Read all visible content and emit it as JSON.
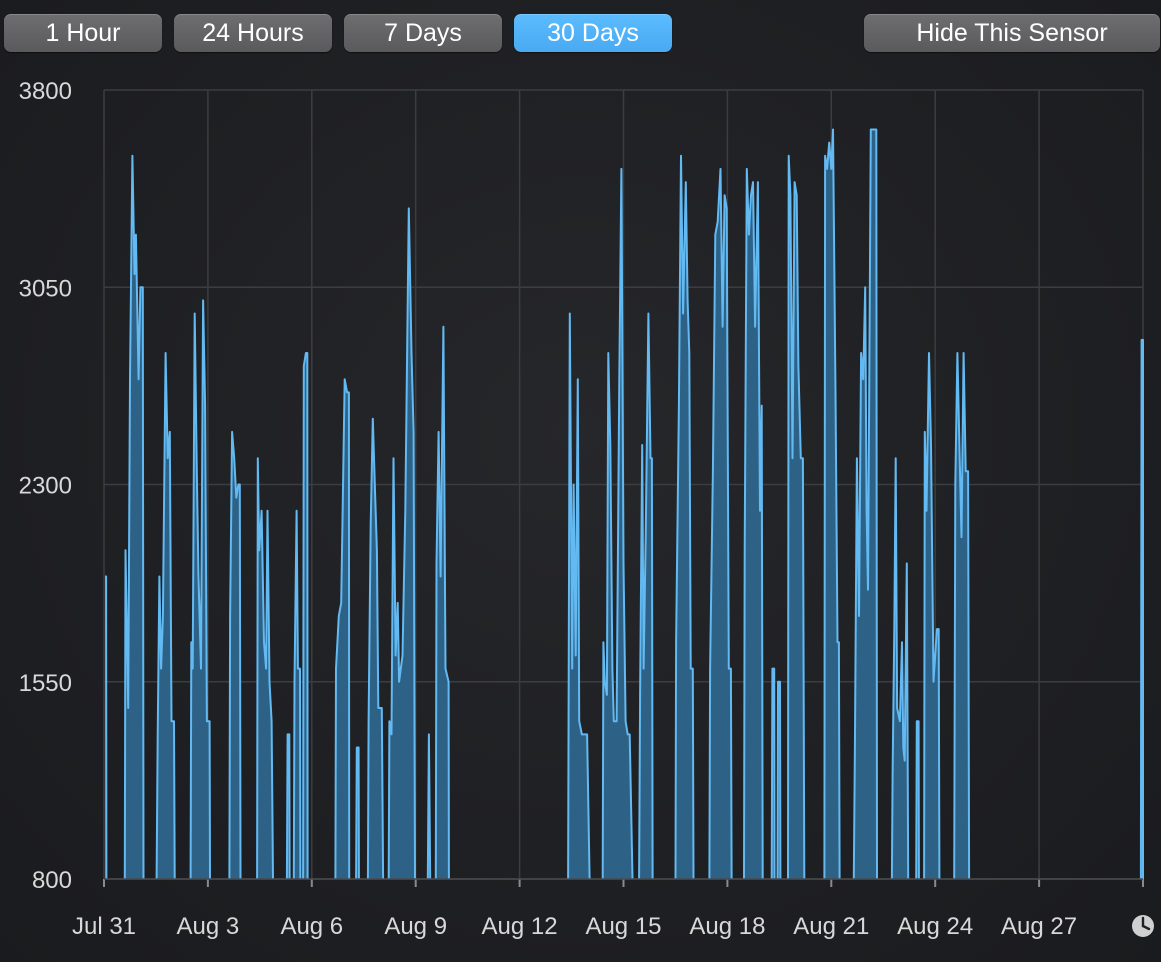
{
  "toolbar": {
    "ranges": [
      {
        "label": "1 Hour",
        "active": false
      },
      {
        "label": "24 Hours",
        "active": false
      },
      {
        "label": "7 Days",
        "active": false
      },
      {
        "label": "30 Days",
        "active": true
      }
    ],
    "hide_label": "Hide This Sensor"
  },
  "colors": {
    "accent": "#52b3f7",
    "bar_fill": "#2d6286",
    "line": "#63b9f2",
    "grid": "#3c3d40"
  },
  "footer": {
    "icon": "clock-icon"
  },
  "chart_data": {
    "type": "area",
    "x_unit": "days",
    "ylim": [
      800,
      3800
    ],
    "xlim": [
      0,
      30
    ],
    "y_ticks": [
      800,
      1550,
      2300,
      3050,
      3800
    ],
    "x_ticks": [
      {
        "label": "Jul 31",
        "x": 0
      },
      {
        "label": "Aug 3",
        "x": 3
      },
      {
        "label": "Aug 6",
        "x": 6
      },
      {
        "label": "Aug 9",
        "x": 9
      },
      {
        "label": "Aug 12",
        "x": 12
      },
      {
        "label": "Aug 15",
        "x": 15
      },
      {
        "label": "Aug 18",
        "x": 18
      },
      {
        "label": "Aug 21",
        "x": 21
      },
      {
        "label": "Aug 24",
        "x": 24
      },
      {
        "label": "Aug 27",
        "x": 27
      },
      {
        "label": "",
        "x": 30
      }
    ],
    "grid": true,
    "segments": [
      [
        [
          0.03,
          1950
        ],
        [
          0.06,
          1950
        ],
        [
          0.07,
          800
        ]
      ],
      [
        [
          0.6,
          800
        ],
        [
          0.62,
          2050
        ],
        [
          0.7,
          1450
        ],
        [
          0.75,
          2700
        ],
        [
          0.82,
          3550
        ],
        [
          0.88,
          3100
        ],
        [
          0.92,
          3250
        ],
        [
          1.0,
          2700
        ],
        [
          1.05,
          3050
        ],
        [
          1.12,
          3050
        ],
        [
          1.14,
          800
        ]
      ],
      [
        [
          1.52,
          800
        ],
        [
          1.55,
          1350
        ],
        [
          1.6,
          1950
        ],
        [
          1.65,
          1600
        ],
        [
          1.7,
          1800
        ],
        [
          1.78,
          2800
        ],
        [
          1.84,
          2400
        ],
        [
          1.9,
          2500
        ],
        [
          1.95,
          1400
        ],
        [
          2.02,
          1400
        ],
        [
          2.04,
          800
        ]
      ],
      [
        [
          2.5,
          800
        ],
        [
          2.52,
          1700
        ],
        [
          2.56,
          1600
        ],
        [
          2.62,
          2950
        ],
        [
          2.68,
          2350
        ],
        [
          2.73,
          1950
        ],
        [
          2.8,
          1600
        ],
        [
          2.86,
          3000
        ],
        [
          2.92,
          2600
        ],
        [
          2.97,
          1400
        ],
        [
          3.05,
          1400
        ],
        [
          3.06,
          800
        ]
      ],
      [
        [
          3.62,
          800
        ],
        [
          3.64,
          1800
        ],
        [
          3.7,
          2500
        ],
        [
          3.76,
          2400
        ],
        [
          3.82,
          2250
        ],
        [
          3.88,
          2300
        ],
        [
          3.92,
          2300
        ],
        [
          3.94,
          800
        ]
      ],
      [
        [
          4.42,
          800
        ],
        [
          4.44,
          2400
        ],
        [
          4.48,
          2050
        ],
        [
          4.55,
          2200
        ],
        [
          4.62,
          1700
        ],
        [
          4.68,
          1600
        ],
        [
          4.72,
          2200
        ],
        [
          4.78,
          1550
        ],
        [
          4.84,
          1400
        ],
        [
          4.88,
          800
        ]
      ],
      [
        [
          5.28,
          800
        ],
        [
          5.3,
          1350
        ],
        [
          5.35,
          1350
        ],
        [
          5.36,
          800
        ]
      ],
      [
        [
          5.48,
          800
        ],
        [
          5.5,
          1550
        ],
        [
          5.56,
          2200
        ],
        [
          5.6,
          1600
        ],
        [
          5.66,
          1600
        ],
        [
          5.67,
          800
        ]
      ],
      [
        [
          5.75,
          800
        ],
        [
          5.77,
          2750
        ],
        [
          5.83,
          2800
        ],
        [
          5.87,
          2800
        ],
        [
          5.88,
          800
        ]
      ],
      [
        [
          6.68,
          800
        ],
        [
          6.7,
          1600
        ],
        [
          6.78,
          1800
        ],
        [
          6.85,
          1850
        ],
        [
          6.95,
          2700
        ],
        [
          7.02,
          2650
        ],
        [
          7.07,
          2650
        ],
        [
          7.08,
          800
        ]
      ],
      [
        [
          7.28,
          800
        ],
        [
          7.3,
          1300
        ],
        [
          7.35,
          1300
        ],
        [
          7.36,
          800
        ]
      ],
      [
        [
          7.62,
          800
        ],
        [
          7.64,
          1400
        ],
        [
          7.7,
          2150
        ],
        [
          7.76,
          2550
        ],
        [
          7.82,
          2300
        ],
        [
          7.88,
          2050
        ],
        [
          7.92,
          1450
        ],
        [
          8.02,
          1450
        ],
        [
          8.06,
          800
        ]
      ],
      [
        [
          8.22,
          800
        ],
        [
          8.24,
          1400
        ],
        [
          8.3,
          1350
        ],
        [
          8.36,
          2400
        ],
        [
          8.42,
          1650
        ],
        [
          8.48,
          1850
        ],
        [
          8.52,
          1550
        ],
        [
          8.62,
          1650
        ],
        [
          8.7,
          2200
        ],
        [
          8.8,
          3350
        ],
        [
          8.88,
          2800
        ],
        [
          8.94,
          2500
        ],
        [
          8.98,
          800
        ]
      ],
      [
        [
          9.35,
          800
        ],
        [
          9.38,
          1350
        ],
        [
          9.42,
          800
        ]
      ],
      [
        [
          9.58,
          800
        ],
        [
          9.6,
          2000
        ],
        [
          9.66,
          2500
        ],
        [
          9.72,
          1950
        ],
        [
          9.8,
          2900
        ],
        [
          9.86,
          1600
        ],
        [
          9.95,
          1550
        ],
        [
          9.96,
          800
        ]
      ],
      [
        [
          13.4,
          800
        ],
        [
          13.45,
          2950
        ],
        [
          13.52,
          1600
        ],
        [
          13.56,
          2300
        ],
        [
          13.62,
          1650
        ],
        [
          13.68,
          2700
        ],
        [
          13.72,
          1400
        ],
        [
          13.8,
          1350
        ],
        [
          13.95,
          1350
        ],
        [
          14.02,
          800
        ]
      ],
      [
        [
          14.4,
          800
        ],
        [
          14.42,
          1700
        ],
        [
          14.46,
          1550
        ],
        [
          14.52,
          1500
        ],
        [
          14.56,
          2800
        ],
        [
          14.62,
          2450
        ],
        [
          14.68,
          1600
        ],
        [
          14.72,
          1400
        ],
        [
          14.8,
          1400
        ],
        [
          14.88,
          2700
        ],
        [
          14.94,
          3500
        ],
        [
          15.0,
          2000
        ],
        [
          15.06,
          1400
        ],
        [
          15.12,
          1350
        ],
        [
          15.18,
          1350
        ],
        [
          15.26,
          800
        ]
      ],
      [
        [
          15.45,
          800
        ],
        [
          15.48,
          1500
        ],
        [
          15.54,
          2450
        ],
        [
          15.58,
          1600
        ],
        [
          15.64,
          2100
        ],
        [
          15.72,
          2950
        ],
        [
          15.78,
          2400
        ],
        [
          15.82,
          2400
        ],
        [
          15.84,
          800
        ]
      ],
      [
        [
          16.5,
          800
        ],
        [
          16.52,
          1700
        ],
        [
          16.6,
          2600
        ],
        [
          16.66,
          3550
        ],
        [
          16.72,
          2950
        ],
        [
          16.8,
          3450
        ],
        [
          16.85,
          3000
        ],
        [
          16.9,
          2800
        ],
        [
          16.94,
          1600
        ],
        [
          17.0,
          1600
        ],
        [
          17.02,
          800
        ]
      ],
      [
        [
          17.48,
          800
        ],
        [
          17.5,
          1600
        ],
        [
          17.58,
          2350
        ],
        [
          17.65,
          3250
        ],
        [
          17.72,
          3300
        ],
        [
          17.8,
          3500
        ],
        [
          17.86,
          2900
        ],
        [
          17.92,
          3400
        ],
        [
          17.98,
          3350
        ],
        [
          18.04,
          1600
        ],
        [
          18.1,
          1600
        ],
        [
          18.12,
          800
        ]
      ],
      [
        [
          18.48,
          800
        ],
        [
          18.5,
          2050
        ],
        [
          18.56,
          3500
        ],
        [
          18.62,
          3250
        ],
        [
          18.68,
          3400
        ],
        [
          18.74,
          3450
        ],
        [
          18.8,
          2900
        ],
        [
          18.88,
          3450
        ],
        [
          18.94,
          2200
        ],
        [
          18.99,
          2600
        ],
        [
          19.02,
          800
        ]
      ],
      [
        [
          19.28,
          800
        ],
        [
          19.3,
          1600
        ],
        [
          19.35,
          1600
        ],
        [
          19.36,
          800
        ]
      ],
      [
        [
          19.45,
          800
        ],
        [
          19.46,
          1550
        ],
        [
          19.52,
          1550
        ],
        [
          19.53,
          800
        ]
      ],
      [
        [
          19.75,
          800
        ],
        [
          19.77,
          3550
        ],
        [
          19.82,
          3400
        ],
        [
          19.88,
          2400
        ],
        [
          19.94,
          3450
        ],
        [
          20.0,
          3400
        ],
        [
          20.05,
          2750
        ],
        [
          20.12,
          2400
        ],
        [
          20.18,
          2400
        ],
        [
          20.22,
          800
        ]
      ],
      [
        [
          20.8,
          800
        ],
        [
          20.82,
          3550
        ],
        [
          20.88,
          3500
        ],
        [
          20.94,
          3600
        ],
        [
          21.0,
          3500
        ],
        [
          21.05,
          3650
        ],
        [
          21.12,
          2650
        ],
        [
          21.18,
          1700
        ],
        [
          21.22,
          1700
        ],
        [
          21.24,
          800
        ]
      ],
      [
        [
          21.65,
          800
        ],
        [
          21.68,
          1300
        ],
        [
          21.74,
          2400
        ],
        [
          21.8,
          1800
        ],
        [
          21.86,
          2800
        ],
        [
          21.92,
          2700
        ],
        [
          21.98,
          3050
        ],
        [
          22.02,
          2200
        ],
        [
          22.06,
          1900
        ],
        [
          22.14,
          3650
        ],
        [
          22.3,
          3650
        ],
        [
          22.32,
          800
        ]
      ],
      [
        [
          22.75,
          800
        ],
        [
          22.77,
          1200
        ],
        [
          22.82,
          1750
        ],
        [
          22.86,
          2400
        ],
        [
          22.9,
          1450
        ],
        [
          22.98,
          1400
        ],
        [
          23.04,
          1700
        ],
        [
          23.08,
          1300
        ],
        [
          23.12,
          1250
        ],
        [
          23.18,
          2000
        ],
        [
          23.22,
          800
        ]
      ],
      [
        [
          23.45,
          800
        ],
        [
          23.47,
          1400
        ],
        [
          23.52,
          1400
        ],
        [
          23.53,
          800
        ]
      ],
      [
        [
          23.68,
          800
        ],
        [
          23.7,
          2500
        ],
        [
          23.75,
          2200
        ],
        [
          23.82,
          2800
        ],
        [
          23.88,
          2450
        ],
        [
          23.95,
          1550
        ],
        [
          24.05,
          1750
        ],
        [
          24.1,
          1750
        ],
        [
          24.12,
          800
        ]
      ],
      [
        [
          24.55,
          800
        ],
        [
          24.58,
          2300
        ],
        [
          24.64,
          2800
        ],
        [
          24.7,
          2450
        ],
        [
          24.76,
          2100
        ],
        [
          24.82,
          2800
        ],
        [
          24.88,
          2350
        ],
        [
          24.95,
          2350
        ],
        [
          24.98,
          800
        ]
      ],
      [
        [
          29.94,
          800
        ],
        [
          29.96,
          2850
        ],
        [
          30.0,
          2850
        ],
        [
          30.0,
          800
        ]
      ]
    ]
  }
}
